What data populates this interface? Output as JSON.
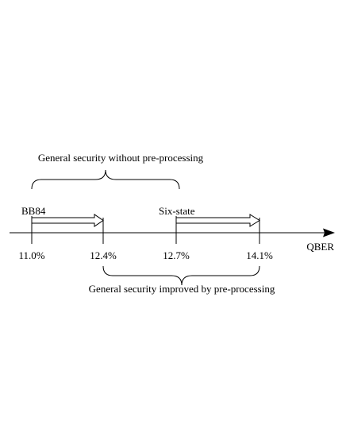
{
  "top_brace_label": "General security without pre-processing",
  "bottom_brace_label": "General security improved by pre-processing",
  "axis_label": "QBER",
  "protocols": [
    {
      "name": "BB84",
      "from": "11.0%",
      "to": "12.4%"
    },
    {
      "name": "Six-state",
      "from": "12.7%",
      "to": "14.1%"
    }
  ],
  "ticks": [
    "11.0%",
    "12.4%",
    "12.7%",
    "14.1%"
  ],
  "colors": {
    "line": "#000000",
    "background": "#ffffff"
  }
}
